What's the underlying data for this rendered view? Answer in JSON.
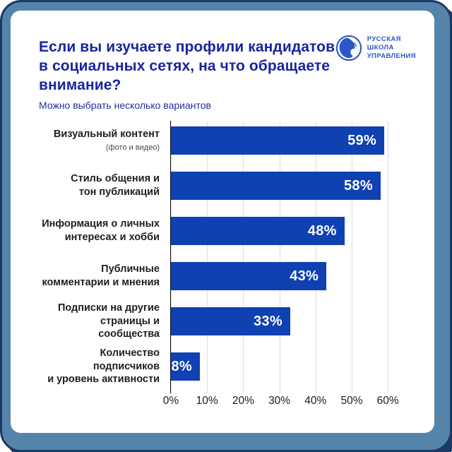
{
  "frame": {
    "outer_background": "#ffffff",
    "frame_color": "#5584ab",
    "frame_border_color": "#1c3866",
    "card_background": "#ffffff"
  },
  "header": {
    "title": "Если вы изучаете профили кандидатов в социальных сетях, на что обращаете внимание?",
    "title_lines": [
      "Если вы изучаете профили кандидатов",
      "в социальных сетях, на что обращаете",
      "внимание?"
    ],
    "title_color": "#1a23a0",
    "subtitle": "Можно выбрать несколько вариантов"
  },
  "logo": {
    "lines": [
      "РУССКАЯ",
      "ШКОЛА",
      "УПРАВЛЕНИЯ"
    ],
    "color": "#2b57c9"
  },
  "chart_data": {
    "type": "bar",
    "orientation": "horizontal",
    "title": "Если вы изучаете профили кандидатов в социальных сетях, на что обращаете внимание?",
    "subtitle": "Можно выбрать несколько вариантов",
    "categories": [
      "Визуальный контент (фото и видео)",
      "Стиль общения и тон публикаций",
      "Информация о личных интересах и хобби",
      "Публичные комментарии и мнения",
      "Подписки на другие страницы и сообщества",
      "Количество подписчиков и уровень активности"
    ],
    "values": [
      59,
      58,
      48,
      43,
      33,
      8
    ],
    "rows": [
      {
        "label_lines": [
          "Визуальный контент"
        ],
        "note": "(фото и видео)",
        "value": 59,
        "value_label": "59%"
      },
      {
        "label_lines": [
          "Стиль общения и",
          "тон публикаций"
        ],
        "value": 58,
        "value_label": "58%"
      },
      {
        "label_lines": [
          "Информация о личных",
          "интересах и хобби"
        ],
        "value": 48,
        "value_label": "48%"
      },
      {
        "label_lines": [
          "Публичные",
          "комментарии и мнения"
        ],
        "value": 43,
        "value_label": "43%"
      },
      {
        "label_lines": [
          "Подписки на другие",
          "страницы и сообщества"
        ],
        "value": 33,
        "value_label": "33%"
      },
      {
        "label_lines": [
          "Количество подписчиков",
          "и уровень активности"
        ],
        "value": 8,
        "value_label": "8%"
      }
    ],
    "x_tick_values": [
      0,
      10,
      20,
      30,
      40,
      50,
      60
    ],
    "x_tick_labels": [
      "0%",
      "10%",
      "20%",
      "30%",
      "40%",
      "50%",
      "60%"
    ],
    "xlim": [
      0,
      67
    ],
    "grid": true,
    "legend": false,
    "bar_color": "#0f41b3",
    "value_label_color": "#ffffff",
    "gridline_color": "#dcdcdc",
    "axis_color": "#111111"
  }
}
